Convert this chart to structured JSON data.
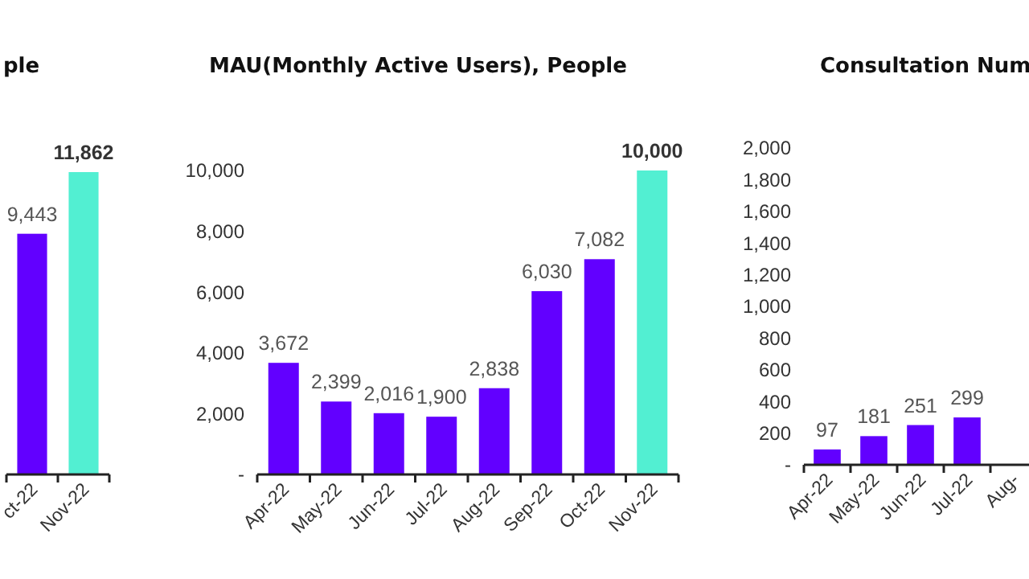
{
  "chart_data": [
    {
      "type": "bar",
      "title": "ple",
      "categories": [
        "ct-22",
        "Nov-22"
      ],
      "values": [
        9443,
        11862
      ],
      "value_labels": [
        "9,443",
        "11,862"
      ],
      "colors": [
        "#6200ff",
        "#52efd2"
      ],
      "tick_labels": "x"
    },
    {
      "type": "bar",
      "title": "MAU(Monthly Active Users), People",
      "categories": [
        "Apr-22",
        "May-22",
        "Jun-22",
        "Jul-22",
        "Aug-22",
        "Sep-22",
        "Oct-22",
        "Nov-22"
      ],
      "values": [
        3672,
        2399,
        2016,
        1900,
        2838,
        6030,
        7082,
        10000
      ],
      "value_labels": [
        "3,672",
        "2,399",
        "2,016",
        "1,900",
        "2,838",
        "6,030",
        "7,082",
        "10,000"
      ],
      "colors": [
        "#6200ff",
        "#6200ff",
        "#6200ff",
        "#6200ff",
        "#6200ff",
        "#6200ff",
        "#6200ff",
        "#52efd2"
      ],
      "ylim": [
        0,
        10000
      ],
      "yticks": [
        {
          "value": 0,
          "label": "-"
        },
        {
          "value": 2000,
          "label": "2,000"
        },
        {
          "value": 4000,
          "label": "4,000"
        },
        {
          "value": 6000,
          "label": "6,000"
        },
        {
          "value": 8000,
          "label": "8,000"
        },
        {
          "value": 10000,
          "label": "10,000"
        }
      ]
    },
    {
      "type": "bar",
      "title": "Consultation Num",
      "categories": [
        "Apr-22",
        "May-22",
        "Jun-22",
        "Jul-22",
        "Aug-"
      ],
      "values": [
        97,
        181,
        251,
        299,
        null
      ],
      "value_labels": [
        "97",
        "181",
        "251",
        "299",
        null
      ],
      "color": "#6200ff",
      "ylim": [
        0,
        2000
      ],
      "yticks": [
        {
          "value": 0,
          "label": "-"
        },
        {
          "value": 200,
          "label": "200"
        },
        {
          "value": 400,
          "label": "400"
        },
        {
          "value": 600,
          "label": "600"
        },
        {
          "value": 800,
          "label": "800"
        },
        {
          "value": 1000,
          "label": "1,000"
        },
        {
          "value": 1200,
          "label": "1,200"
        },
        {
          "value": 1400,
          "label": "1,400"
        },
        {
          "value": 1600,
          "label": "1,600"
        },
        {
          "value": 1800,
          "label": "1,800"
        },
        {
          "value": 2000,
          "label": "2,000"
        }
      ]
    }
  ]
}
